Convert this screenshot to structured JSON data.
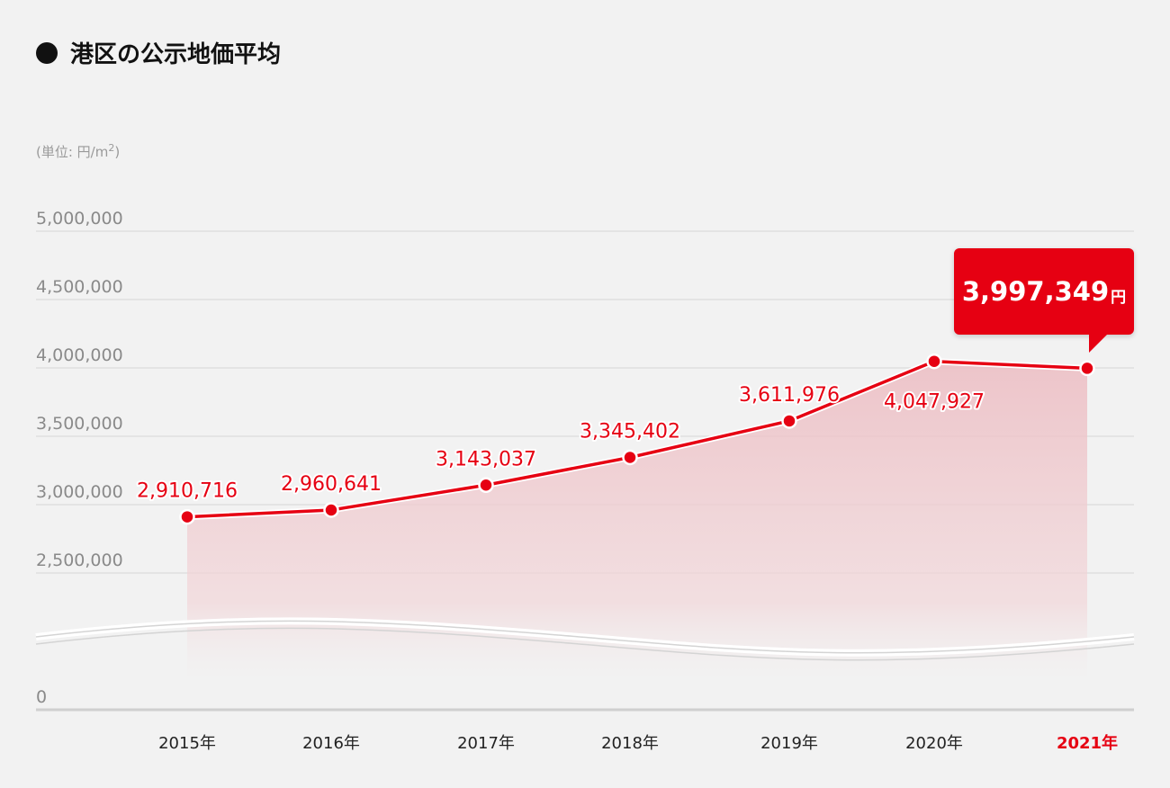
{
  "title": "港区の公示地価平均",
  "unit_label": "(単位: 円/m",
  "unit_sup": "2",
  "unit_close": ")",
  "callout": {
    "value": "3,997,349",
    "unit": "円"
  },
  "colors": {
    "accent": "#e60012",
    "fill": "#f2c8cd",
    "grid": "#d6d6d6",
    "background": "#f2f2f2"
  },
  "chart_data": {
    "type": "line",
    "title": "港区の公示地価平均",
    "xlabel": "",
    "ylabel": "",
    "categories": [
      "2015年",
      "2016年",
      "2017年",
      "2018年",
      "2019年",
      "2020年",
      "2021年"
    ],
    "values": [
      2910716,
      2960641,
      3143037,
      3345402,
      3611976,
      4047927,
      3997349
    ],
    "data_labels": [
      "2,910,716",
      "2,960,641",
      "3,143,037",
      "3,345,402",
      "3,611,976",
      "4,047,927",
      null
    ],
    "highlight_index": 6,
    "y_ticks": [
      {
        "value": 0,
        "label": "0"
      },
      {
        "value": 2500000,
        "label": "2,500,000"
      },
      {
        "value": 3000000,
        "label": "3,000,000"
      },
      {
        "value": 3500000,
        "label": "3,500,000"
      },
      {
        "value": 4000000,
        "label": "4,000,000"
      },
      {
        "value": 4500000,
        "label": "4,500,000"
      },
      {
        "value": 5000000,
        "label": "5,000,000"
      }
    ],
    "ylim": [
      0,
      5000000
    ],
    "axis_break": true,
    "grid": true,
    "area_fill": true
  }
}
